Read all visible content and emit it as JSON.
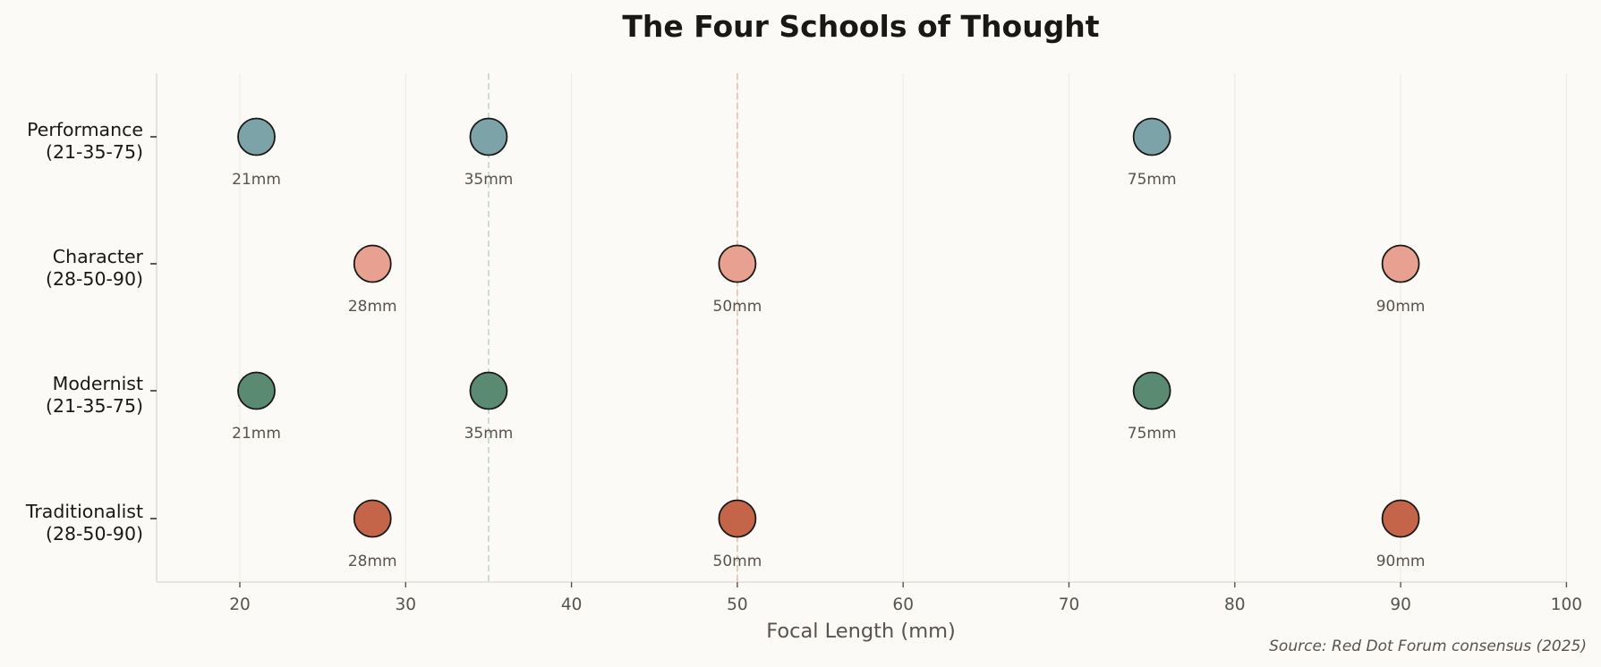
{
  "chart_data": {
    "type": "scatter",
    "title": "The Four Schools of Thought",
    "xlabel": "Focal Length (mm)",
    "ylabel": "",
    "xlim": [
      15,
      100
    ],
    "xticks": [
      20,
      30,
      40,
      50,
      60,
      70,
      80,
      90,
      100
    ],
    "grid": "vertical",
    "reference_lines": [
      {
        "x": 35,
        "color": "#C9D8CE",
        "style": "dashed"
      },
      {
        "x": 50,
        "color": "#EBC3B6",
        "style": "dashed"
      }
    ],
    "categories": [
      "Performance\n(21-35-75)",
      "Character\n(28-50-90)",
      "Modernist\n(21-35-75)",
      "Traditionalist\n(28-50-90)"
    ],
    "series": [
      {
        "name": "Performance",
        "label_lines": [
          "Performance",
          "(21-35-75)"
        ],
        "color": "#7BA3A8",
        "values": [
          21,
          35,
          75
        ],
        "point_labels": [
          "21mm",
          "35mm",
          "75mm"
        ]
      },
      {
        "name": "Character",
        "label_lines": [
          "Character",
          "(28-50-90)"
        ],
        "color": "#E8A090",
        "values": [
          28,
          50,
          90
        ],
        "point_labels": [
          "28mm",
          "50mm",
          "90mm"
        ]
      },
      {
        "name": "Modernist",
        "label_lines": [
          "Modernist",
          "(21-35-75)"
        ],
        "color": "#5B8A72",
        "values": [
          21,
          35,
          75
        ],
        "point_labels": [
          "21mm",
          "35mm",
          "75mm"
        ]
      },
      {
        "name": "Traditionalist",
        "label_lines": [
          "Traditionalist",
          "(28-50-90)"
        ],
        "color": "#C4654A",
        "values": [
          28,
          50,
          90
        ],
        "point_labels": [
          "28mm",
          "50mm",
          "90mm"
        ]
      }
    ],
    "annotation": "Source: Red Dot Forum consensus (2025)"
  },
  "colors": {
    "background": "#FBFAF7",
    "spine": "#E2DDD7",
    "grid": "#EFECE7",
    "text": "#1A1815",
    "muted_text": "#5A524C",
    "marker_edge": "#1A1815"
  }
}
